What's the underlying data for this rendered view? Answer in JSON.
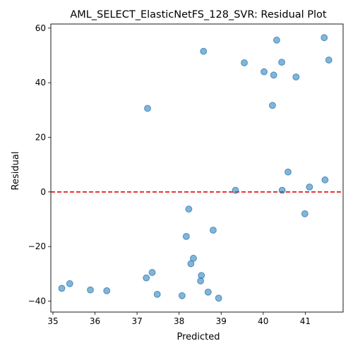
{
  "chart_data": {
    "type": "scatter",
    "title": "AML_SELECT_ElasticNetFS_128_SVR: Residual Plot",
    "xlabel": "Predicted",
    "ylabel": "Residual",
    "xlim": [
      34.95,
      41.9
    ],
    "ylim": [
      -44,
      61.5
    ],
    "xticks": [
      35,
      36,
      37,
      38,
      39,
      40,
      41
    ],
    "yticks": [
      -40,
      -20,
      0,
      20,
      40,
      60
    ],
    "reference_line": {
      "y": 0,
      "style": "dashed",
      "color": "#e31a1c"
    },
    "point_color": "#1f77b4",
    "grid": false,
    "points": [
      {
        "x": 35.21,
        "y": -35.3
      },
      {
        "x": 35.4,
        "y": -33.6
      },
      {
        "x": 35.89,
        "y": -35.9
      },
      {
        "x": 36.28,
        "y": -36.2
      },
      {
        "x": 37.22,
        "y": -31.5
      },
      {
        "x": 37.36,
        "y": -29.5
      },
      {
        "x": 37.48,
        "y": -37.5
      },
      {
        "x": 38.07,
        "y": -38.0
      },
      {
        "x": 38.28,
        "y": -26.3
      },
      {
        "x": 38.34,
        "y": -24.3
      },
      {
        "x": 38.51,
        "y": -32.6
      },
      {
        "x": 38.53,
        "y": -30.6
      },
      {
        "x": 38.69,
        "y": -36.7
      },
      {
        "x": 38.94,
        "y": -38.9
      },
      {
        "x": 38.17,
        "y": -16.3
      },
      {
        "x": 38.81,
        "y": -14.0
      },
      {
        "x": 38.23,
        "y": -6.3
      },
      {
        "x": 37.25,
        "y": 30.6
      },
      {
        "x": 38.58,
        "y": 51.5
      },
      {
        "x": 39.55,
        "y": 47.3
      },
      {
        "x": 40.02,
        "y": 44.0
      },
      {
        "x": 40.25,
        "y": 42.8
      },
      {
        "x": 40.32,
        "y": 55.6
      },
      {
        "x": 40.44,
        "y": 47.5
      },
      {
        "x": 40.78,
        "y": 42.1
      },
      {
        "x": 41.45,
        "y": 56.5
      },
      {
        "x": 41.56,
        "y": 48.3
      },
      {
        "x": 40.22,
        "y": 31.7
      },
      {
        "x": 39.34,
        "y": 0.6
      },
      {
        "x": 40.45,
        "y": 0.6
      },
      {
        "x": 40.59,
        "y": 7.3
      },
      {
        "x": 41.1,
        "y": 1.8
      },
      {
        "x": 41.47,
        "y": 4.4
      },
      {
        "x": 40.99,
        "y": -8.0
      }
    ]
  }
}
